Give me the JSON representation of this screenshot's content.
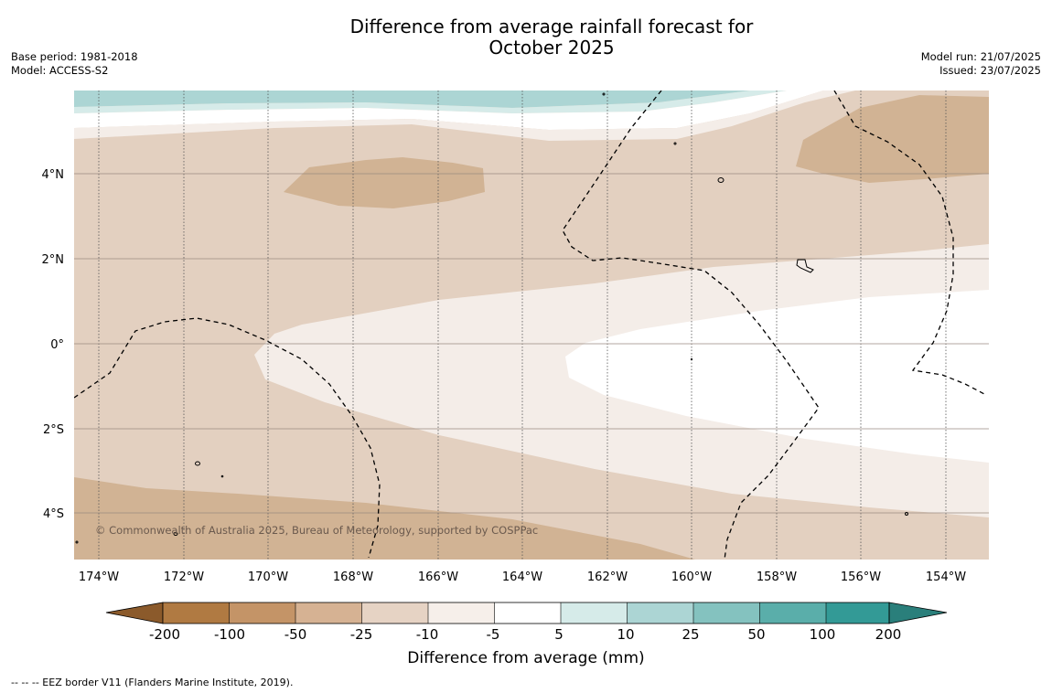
{
  "title": {
    "line1": "Difference from average rainfall forecast for",
    "line2": "October 2025"
  },
  "meta_left": {
    "base_period": "Base period: 1981-2018",
    "model": "Model: ACCESS-S2"
  },
  "meta_right": {
    "model_run": "Model run: 21/07/2025",
    "issued": "Issued: 23/07/2025"
  },
  "map": {
    "lon_labels": [
      "174°W",
      "172°W",
      "170°W",
      "168°W",
      "166°W",
      "164°W",
      "162°W",
      "160°W",
      "158°W",
      "156°W",
      "154°W"
    ],
    "lat_labels": [
      "4°N",
      "2°N",
      "0°",
      "2°S",
      "4°S"
    ],
    "copyright": "© Commonwealth of Australia 2025, Bureau of Meteorology, supported by COSPPac",
    "colors": {
      "land_dry_strong": "#d1b394",
      "land_dry_mid": "#e3d0c0",
      "land_dry_light": "#f4ede8",
      "neutral": "#ffffff",
      "wet_light": "#d6ebe9",
      "wet_mid": "#acd5d4"
    }
  },
  "colorbar": {
    "labels": [
      "-200",
      "-100",
      "-50",
      "-25",
      "-10",
      "-5",
      "5",
      "10",
      "25",
      "50",
      "100",
      "200"
    ],
    "colors": [
      "#8b5a2b",
      "#b07a42",
      "#c49467",
      "#d6b293",
      "#e6d3c4",
      "#f6efea",
      "#ffffff",
      "#d6ebe9",
      "#acd5d4",
      "#84c2bf",
      "#5aaeaa",
      "#339a96",
      "#2a7f7b"
    ],
    "title": "Difference from average (mm)"
  },
  "footnote": "--  --  -- EEZ border V11 (Flanders Marine Institute, 2019)."
}
